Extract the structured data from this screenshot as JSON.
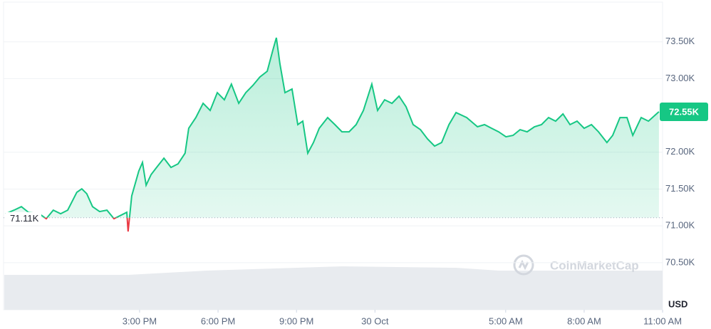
{
  "chart_data": {
    "type": "line",
    "x": [
      -2.12,
      -1.8,
      -1.52,
      -1.25,
      -0.84,
      -0.57,
      -0.3,
      -0.02,
      0.25,
      0.6,
      0.79,
      0.98,
      1.2,
      1.47,
      1.75,
      2.02,
      2.29,
      2.51,
      2.56,
      2.7,
      2.97,
      3.11,
      3.25,
      3.44,
      3.65,
      3.93,
      4.2,
      4.47,
      4.74,
      4.88,
      5.15,
      5.43,
      5.7,
      5.97,
      6.24,
      6.51,
      6.79,
      7.06,
      7.33,
      7.6,
      7.88,
      8.1,
      8.23,
      8.37,
      8.56,
      8.83,
      9.05,
      9.24,
      9.43,
      9.65,
      9.87,
      10.19,
      10.47,
      10.74,
      11.01,
      11.28,
      11.56,
      11.88,
      12.1,
      12.37,
      12.65,
      12.92,
      13.19,
      13.46,
      13.74,
      14.01,
      14.28,
      14.55,
      14.83,
      15.1,
      15.51,
      15.92,
      16.19,
      16.46,
      16.73,
      17.01,
      17.28,
      17.55,
      17.82,
      18.1,
      18.37,
      18.64,
      18.91,
      19.19,
      19.46,
      19.73,
      20.0,
      20.28,
      20.55,
      20.87,
      21.09,
      21.37,
      21.64,
      21.86,
      22.18,
      22.46,
      22.86
    ],
    "values": [
      71165,
      71213,
      71261,
      71184,
      71165,
      71097,
      71213,
      71165,
      71213,
      71455,
      71503,
      71436,
      71261,
      71194,
      71213,
      71097,
      71145,
      71184,
      70923,
      71407,
      71745,
      71862,
      71552,
      71697,
      71794,
      71920,
      71794,
      71842,
      71987,
      72326,
      72471,
      72665,
      72568,
      72810,
      72713,
      72926,
      72665,
      72810,
      72907,
      73023,
      73101,
      73391,
      73556,
      73197,
      72810,
      72859,
      72375,
      72423,
      71987,
      72133,
      72326,
      72471,
      72375,
      72278,
      72278,
      72375,
      72568,
      72926,
      72568,
      72713,
      72665,
      72762,
      72617,
      72375,
      72307,
      72181,
      72084,
      72133,
      72375,
      72539,
      72471,
      72346,
      72375,
      72326,
      72278,
      72210,
      72229,
      72307,
      72278,
      72346,
      72375,
      72471,
      72423,
      72520,
      72375,
      72423,
      72326,
      72375,
      72278,
      72133,
      72229,
      72471,
      72471,
      72229,
      72471,
      72423,
      72550
    ],
    "up_color": "#16c784",
    "down_color": "#ea3943",
    "reference": {
      "value": 71110,
      "label": "71.11K"
    },
    "current_price": {
      "value": 72550,
      "label": "72.55K"
    },
    "xlim": [
      -2.12,
      23.08
    ],
    "xticks": [
      {
        "value": 3,
        "label": "3:00 PM"
      },
      {
        "value": 6,
        "label": "6:00 PM"
      },
      {
        "value": 9,
        "label": "9:00 PM"
      },
      {
        "value": 12,
        "label": "30 Oct"
      },
      {
        "value": 17,
        "label": "5:00 AM"
      },
      {
        "value": 20,
        "label": "8:00 AM"
      },
      {
        "value": 23,
        "label": "11:00 AM"
      }
    ],
    "ylim": [
      69860,
      74020
    ],
    "yticks": [
      {
        "value": 70500,
        "label": "70.50K"
      },
      {
        "value": 71000,
        "label": "71.00K"
      },
      {
        "value": 71500,
        "label": "71.50K"
      },
      {
        "value": 72000,
        "label": "72.00K"
      },
      {
        "value": 73000,
        "label": "73.00K"
      },
      {
        "value": 73500,
        "label": "73.50K"
      }
    ],
    "y_unit": "USD",
    "watermark": "CoinMarketCap",
    "grid": true
  }
}
